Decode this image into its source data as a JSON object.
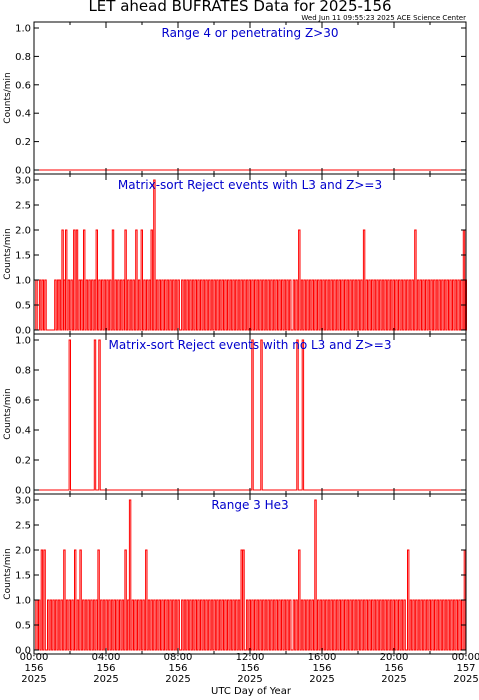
{
  "figure": {
    "title": "LET ahead BUFRATES Data for 2025-156",
    "timestamp": "Wed Jun 11 09:55:23 2025 ACE Science Center",
    "xlabel": "UTC Day of Year",
    "series_color": "#ff0000",
    "label_color": "#0000cc"
  },
  "chart_data": [
    {
      "type": "line",
      "title": "Range 4 or  penetrating Z>30",
      "ylabel": "Counts/min",
      "ylim": [
        0,
        1.0
      ],
      "yticks": [
        "0.0",
        "0.2",
        "0.4",
        "0.6",
        "0.8",
        "1.0"
      ],
      "xlim": [
        0,
        24
      ],
      "x_unit": "hours UTC",
      "events": []
    },
    {
      "type": "line",
      "title": "Matrix-sort Reject events with L3 and Z>=3",
      "ylabel": "Counts/min",
      "ylim": [
        0,
        3.0
      ],
      "yticks": [
        "0.0",
        "0.5",
        "1.0",
        "1.5",
        "2.0",
        "2.5",
        "3.0"
      ],
      "xlim": [
        0,
        24
      ],
      "x_unit": "hours UTC",
      "events": [
        [
          0.1,
          1
        ],
        [
          0.3,
          1
        ],
        [
          0.45,
          1
        ],
        [
          0.6,
          1
        ],
        [
          1.15,
          1
        ],
        [
          1.3,
          1
        ],
        [
          1.4,
          1
        ],
        [
          1.55,
          2
        ],
        [
          1.65,
          1
        ],
        [
          1.75,
          2
        ],
        [
          1.9,
          1
        ],
        [
          2.05,
          1
        ],
        [
          2.2,
          2
        ],
        [
          2.35,
          2
        ],
        [
          2.5,
          1
        ],
        [
          2.6,
          1
        ],
        [
          2.75,
          2
        ],
        [
          2.9,
          1
        ],
        [
          3.05,
          1
        ],
        [
          3.2,
          1
        ],
        [
          3.35,
          1
        ],
        [
          3.45,
          2
        ],
        [
          3.6,
          1
        ],
        [
          3.75,
          1
        ],
        [
          3.9,
          1
        ],
        [
          4.05,
          1
        ],
        [
          4.2,
          1
        ],
        [
          4.35,
          2
        ],
        [
          4.5,
          1
        ],
        [
          4.65,
          1
        ],
        [
          4.8,
          1
        ],
        [
          4.95,
          1
        ],
        [
          5.05,
          2
        ],
        [
          5.2,
          1
        ],
        [
          5.35,
          1
        ],
        [
          5.5,
          1
        ],
        [
          5.65,
          2
        ],
        [
          5.8,
          1
        ],
        [
          5.95,
          2
        ],
        [
          6.1,
          1
        ],
        [
          6.25,
          1
        ],
        [
          6.4,
          1
        ],
        [
          6.5,
          2
        ],
        [
          6.65,
          3
        ],
        [
          6.8,
          1
        ],
        [
          6.95,
          1
        ],
        [
          7.1,
          1
        ],
        [
          7.25,
          1
        ],
        [
          7.4,
          1
        ],
        [
          7.55,
          1
        ],
        [
          7.7,
          1
        ],
        [
          7.85,
          1
        ],
        [
          8.0,
          1
        ],
        [
          8.2,
          1
        ],
        [
          8.35,
          1
        ],
        [
          8.5,
          1
        ],
        [
          8.65,
          1
        ],
        [
          8.8,
          1
        ],
        [
          8.95,
          1
        ],
        [
          9.1,
          1
        ],
        [
          9.25,
          1
        ],
        [
          9.4,
          1
        ],
        [
          9.55,
          1
        ],
        [
          9.7,
          1
        ],
        [
          9.85,
          1
        ],
        [
          10.0,
          1
        ],
        [
          10.15,
          1
        ],
        [
          10.3,
          1
        ],
        [
          10.45,
          1
        ],
        [
          10.6,
          1
        ],
        [
          10.75,
          1
        ],
        [
          10.9,
          1
        ],
        [
          11.05,
          1
        ],
        [
          11.2,
          1
        ],
        [
          11.35,
          1
        ],
        [
          11.5,
          1
        ],
        [
          11.65,
          1
        ],
        [
          11.8,
          1
        ],
        [
          11.95,
          1
        ],
        [
          12.1,
          1
        ],
        [
          12.25,
          1
        ],
        [
          12.4,
          1
        ],
        [
          12.55,
          1
        ],
        [
          12.7,
          1
        ],
        [
          12.85,
          1
        ],
        [
          13.0,
          1
        ],
        [
          13.15,
          1
        ],
        [
          13.3,
          1
        ],
        [
          13.45,
          1
        ],
        [
          13.6,
          1
        ],
        [
          13.75,
          1
        ],
        [
          13.9,
          1
        ],
        [
          14.05,
          1
        ],
        [
          14.2,
          1
        ],
        [
          14.4,
          1
        ],
        [
          14.55,
          1
        ],
        [
          14.7,
          2
        ],
        [
          14.85,
          1
        ],
        [
          15.0,
          1
        ],
        [
          15.15,
          1
        ],
        [
          15.3,
          1
        ],
        [
          15.45,
          1
        ],
        [
          15.6,
          1
        ],
        [
          15.75,
          1
        ],
        [
          15.9,
          1
        ],
        [
          16.05,
          1
        ],
        [
          16.2,
          1
        ],
        [
          16.35,
          1
        ],
        [
          16.5,
          1
        ],
        [
          16.65,
          1
        ],
        [
          16.8,
          1
        ],
        [
          16.95,
          1
        ],
        [
          17.1,
          1
        ],
        [
          17.25,
          1
        ],
        [
          17.4,
          1
        ],
        [
          17.55,
          1
        ],
        [
          17.7,
          1
        ],
        [
          17.85,
          1
        ],
        [
          18.0,
          1
        ],
        [
          18.15,
          1
        ],
        [
          18.3,
          2
        ],
        [
          18.45,
          1
        ],
        [
          18.6,
          1
        ],
        [
          18.75,
          1
        ],
        [
          18.9,
          1
        ],
        [
          19.05,
          1
        ],
        [
          19.2,
          1
        ],
        [
          19.35,
          1
        ],
        [
          19.5,
          1
        ],
        [
          19.65,
          1
        ],
        [
          19.8,
          1
        ],
        [
          19.95,
          1
        ],
        [
          20.1,
          1
        ],
        [
          20.25,
          1
        ],
        [
          20.4,
          1
        ],
        [
          20.55,
          1
        ],
        [
          20.7,
          1
        ],
        [
          20.85,
          1
        ],
        [
          21.0,
          1
        ],
        [
          21.15,
          2
        ],
        [
          21.3,
          1
        ],
        [
          21.45,
          1
        ],
        [
          21.6,
          1
        ],
        [
          21.75,
          1
        ],
        [
          21.9,
          1
        ],
        [
          22.05,
          1
        ],
        [
          22.2,
          1
        ],
        [
          22.35,
          1
        ],
        [
          22.5,
          1
        ],
        [
          22.65,
          1
        ],
        [
          22.8,
          1
        ],
        [
          22.95,
          1
        ],
        [
          23.1,
          1
        ],
        [
          23.25,
          1
        ],
        [
          23.4,
          1
        ],
        [
          23.55,
          1
        ],
        [
          23.7,
          1
        ],
        [
          23.85,
          2
        ],
        [
          23.95,
          1
        ]
      ]
    },
    {
      "type": "line",
      "title": "Matrix-sort Reject events with no L3 and Z>=3",
      "ylabel": "Counts/min",
      "ylim": [
        0,
        1.0
      ],
      "yticks": [
        "0.0",
        "0.2",
        "0.4",
        "0.6",
        "0.8",
        "1.0"
      ],
      "xlim": [
        0,
        24
      ],
      "x_unit": "hours UTC",
      "events": [
        [
          1.95,
          1
        ],
        [
          3.35,
          1
        ],
        [
          3.6,
          1
        ],
        [
          12.1,
          1
        ],
        [
          12.6,
          1
        ],
        [
          14.6,
          1
        ],
        [
          14.9,
          1
        ]
      ]
    },
    {
      "type": "line",
      "title": "Range 3 He3",
      "ylabel": "Counts/min",
      "ylim": [
        0,
        3.0
      ],
      "yticks": [
        "0.0",
        "0.5",
        "1.0",
        "1.5",
        "2.0",
        "2.5",
        "3.0"
      ],
      "xlim": [
        0,
        24
      ],
      "x_unit": "hours UTC",
      "xticks": [
        {
          "time": "00:00",
          "day": "156",
          "year": "2025"
        },
        {
          "time": "04:00",
          "day": "156",
          "year": "2025"
        },
        {
          "time": "08:00",
          "day": "156",
          "year": "2025"
        },
        {
          "time": "12:00",
          "day": "156",
          "year": "2025"
        },
        {
          "time": "16:00",
          "day": "156",
          "year": "2025"
        },
        {
          "time": "20:00",
          "day": "156",
          "year": "2025"
        },
        {
          "time": "00:00",
          "day": "157",
          "year": "2025"
        }
      ],
      "events": [
        [
          0.1,
          1
        ],
        [
          0.25,
          1
        ],
        [
          0.4,
          2
        ],
        [
          0.55,
          2
        ],
        [
          0.75,
          1
        ],
        [
          0.9,
          1
        ],
        [
          1.05,
          1
        ],
        [
          1.2,
          1
        ],
        [
          1.35,
          1
        ],
        [
          1.5,
          1
        ],
        [
          1.65,
          2
        ],
        [
          1.8,
          1
        ],
        [
          1.95,
          1
        ],
        [
          2.1,
          1
        ],
        [
          2.25,
          2
        ],
        [
          2.4,
          1
        ],
        [
          2.55,
          2
        ],
        [
          2.7,
          1
        ],
        [
          2.85,
          1
        ],
        [
          3.0,
          1
        ],
        [
          3.15,
          1
        ],
        [
          3.3,
          1
        ],
        [
          3.45,
          1
        ],
        [
          3.55,
          2
        ],
        [
          3.7,
          1
        ],
        [
          3.85,
          1
        ],
        [
          4.0,
          1
        ],
        [
          4.15,
          1
        ],
        [
          4.3,
          1
        ],
        [
          4.45,
          1
        ],
        [
          4.6,
          1
        ],
        [
          4.75,
          1
        ],
        [
          4.9,
          1
        ],
        [
          5.05,
          2
        ],
        [
          5.2,
          1
        ],
        [
          5.3,
          3
        ],
        [
          5.45,
          1
        ],
        [
          5.6,
          1
        ],
        [
          5.75,
          1
        ],
        [
          5.9,
          1
        ],
        [
          6.05,
          1
        ],
        [
          6.2,
          2
        ],
        [
          6.35,
          1
        ],
        [
          6.5,
          1
        ],
        [
          6.65,
          1
        ],
        [
          6.8,
          1
        ],
        [
          6.95,
          1
        ],
        [
          7.1,
          1
        ],
        [
          7.25,
          1
        ],
        [
          7.4,
          1
        ],
        [
          7.55,
          1
        ],
        [
          7.7,
          1
        ],
        [
          7.85,
          1
        ],
        [
          8.0,
          1
        ],
        [
          8.2,
          1
        ],
        [
          8.35,
          1
        ],
        [
          8.5,
          1
        ],
        [
          8.65,
          1
        ],
        [
          8.8,
          1
        ],
        [
          8.95,
          1
        ],
        [
          9.1,
          1
        ],
        [
          9.25,
          1
        ],
        [
          9.4,
          1
        ],
        [
          9.55,
          1
        ],
        [
          9.7,
          1
        ],
        [
          9.85,
          1
        ],
        [
          10.0,
          1
        ],
        [
          10.15,
          1
        ],
        [
          10.3,
          1
        ],
        [
          10.45,
          1
        ],
        [
          10.6,
          1
        ],
        [
          10.75,
          1
        ],
        [
          10.9,
          1
        ],
        [
          11.05,
          1
        ],
        [
          11.2,
          1
        ],
        [
          11.35,
          1
        ],
        [
          11.5,
          2
        ],
        [
          11.6,
          2
        ],
        [
          11.8,
          1
        ],
        [
          11.95,
          1
        ],
        [
          12.1,
          1
        ],
        [
          12.25,
          1
        ],
        [
          12.4,
          1
        ],
        [
          12.55,
          1
        ],
        [
          12.7,
          1
        ],
        [
          12.85,
          1
        ],
        [
          13.0,
          1
        ],
        [
          13.15,
          1
        ],
        [
          13.3,
          1
        ],
        [
          13.45,
          1
        ],
        [
          13.6,
          1
        ],
        [
          13.75,
          1
        ],
        [
          13.9,
          1
        ],
        [
          14.05,
          1
        ],
        [
          14.2,
          1
        ],
        [
          14.4,
          1
        ],
        [
          14.55,
          1
        ],
        [
          14.7,
          2
        ],
        [
          14.85,
          1
        ],
        [
          15.0,
          1
        ],
        [
          15.15,
          1
        ],
        [
          15.3,
          1
        ],
        [
          15.45,
          1
        ],
        [
          15.6,
          3
        ],
        [
          15.75,
          1
        ],
        [
          15.9,
          1
        ],
        [
          16.05,
          1
        ],
        [
          16.2,
          1
        ],
        [
          16.35,
          1
        ],
        [
          16.5,
          1
        ],
        [
          16.65,
          1
        ],
        [
          16.8,
          1
        ],
        [
          16.95,
          1
        ],
        [
          17.1,
          1
        ],
        [
          17.25,
          1
        ],
        [
          17.4,
          1
        ],
        [
          17.55,
          1
        ],
        [
          17.7,
          1
        ],
        [
          17.85,
          1
        ],
        [
          18.0,
          1
        ],
        [
          18.15,
          1
        ],
        [
          18.3,
          1
        ],
        [
          18.45,
          1
        ],
        [
          18.6,
          1
        ],
        [
          18.75,
          1
        ],
        [
          18.9,
          1
        ],
        [
          19.05,
          1
        ],
        [
          19.2,
          1
        ],
        [
          19.35,
          1
        ],
        [
          19.5,
          1
        ],
        [
          19.65,
          1
        ],
        [
          19.8,
          1
        ],
        [
          19.95,
          1
        ],
        [
          20.1,
          1
        ],
        [
          20.25,
          1
        ],
        [
          20.4,
          1
        ],
        [
          20.55,
          1
        ],
        [
          20.75,
          2
        ],
        [
          20.9,
          1
        ],
        [
          21.05,
          1
        ],
        [
          21.2,
          1
        ],
        [
          21.35,
          1
        ],
        [
          21.5,
          1
        ],
        [
          21.65,
          1
        ],
        [
          21.8,
          1
        ],
        [
          21.95,
          1
        ],
        [
          22.1,
          1
        ],
        [
          22.25,
          1
        ],
        [
          22.4,
          1
        ],
        [
          22.55,
          1
        ],
        [
          22.7,
          1
        ],
        [
          22.85,
          1
        ],
        [
          23.0,
          1
        ],
        [
          23.15,
          1
        ],
        [
          23.3,
          1
        ],
        [
          23.45,
          1
        ],
        [
          23.6,
          1
        ],
        [
          23.75,
          1
        ],
        [
          23.9,
          2
        ]
      ]
    }
  ]
}
